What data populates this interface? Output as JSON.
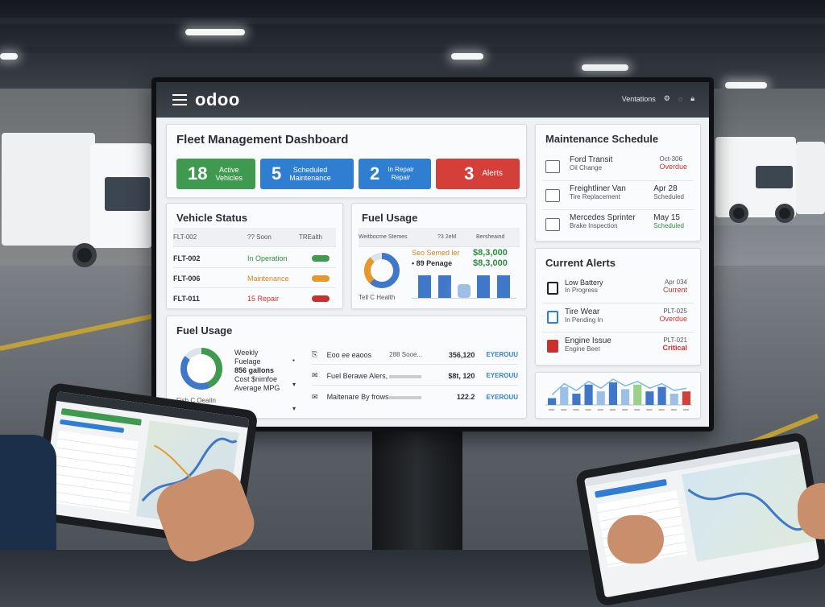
{
  "app": {
    "logo": "odoo",
    "top_right_label": "Ventations",
    "top_right_icons": [
      "settings-icon",
      "chat-icon",
      "lock-icon"
    ]
  },
  "dashboard": {
    "title": "Fleet Management Dashboard",
    "kpis": [
      {
        "value": "18",
        "label_line1": "Active",
        "label_line2": "Vehicles",
        "color": "#3f9a4f"
      },
      {
        "value": "5",
        "label_line1": "Scheduled",
        "label_line2": "Maintenance",
        "color": "#2f7ed1"
      },
      {
        "value": "2",
        "label_line1": "In Repair",
        "label_line2": "Repair",
        "color": "#2f7ed1"
      },
      {
        "value": "3",
        "label_line1": "Alerts",
        "label_line2": "",
        "color": "#d43f3a"
      }
    ]
  },
  "vehicle_status": {
    "title": "Vehicle Status",
    "header": [
      "FLT-002",
      "?? Soon",
      "TREalth"
    ],
    "rows": [
      {
        "id": "FLT-002",
        "status": "In Operation",
        "status_color": "#2e8b3e",
        "pill_color": "#3f9a4f"
      },
      {
        "id": "FLT-006",
        "status": "Maintenance",
        "status_color": "#d9821f",
        "pill_color": "#e39a2b"
      },
      {
        "id": "FLT-011",
        "status": "15 Repair",
        "status_color": "#c8322e",
        "pill_color": "#c8322e"
      }
    ]
  },
  "fuel_usage_small": {
    "title": "Fuel Usage",
    "header": [
      "Weitbocme Stemes",
      "?3 2eM",
      "Bersheaind"
    ],
    "line1_label": "Seo Semed ler",
    "line1_value": "$8,3,000",
    "line2_label": "• 89 Penage",
    "line2_value": "$8,3,000",
    "donut_caption": "Tell C Health",
    "bars": [
      0.82,
      0.82,
      0.5,
      0.82,
      0.82
    ]
  },
  "fuel_usage_large": {
    "title": "Fuel Usage",
    "donut_caption": "Fish C Oeaitn",
    "summary": [
      "Weekly",
      "Fuelage",
      "856 gallons",
      "Cost $nimfoe",
      "Average MPG"
    ],
    "rows": [
      {
        "label": "Eoo ee eaoos",
        "mid": "288 Sooe...",
        "value": "356,120",
        "badge": "EYEROUU"
      },
      {
        "label": "Fuel Berawe Alers,",
        "mid": "",
        "value": "$8t, 120",
        "badge": "EYEROUU"
      },
      {
        "label": "Maltenare By frows",
        "mid": "",
        "value": "122.2",
        "badge": "EYEROUU"
      }
    ]
  },
  "maintenance": {
    "title": "Maintenance Schedule",
    "items": [
      {
        "vehicle": "Ford Transit",
        "task": "Oil Change",
        "date": "Oct-306",
        "status": "Overdue",
        "status_color": "#c8322e"
      },
      {
        "vehicle": "Freightliner Van",
        "task": "Tire Replacement",
        "date": "Apr 28",
        "status": "Scheduled",
        "status_color": "#555555"
      },
      {
        "vehicle": "Mercedes Sprinter",
        "task": "Brake Inspection",
        "date": "May 15",
        "status": "Scheduled",
        "status_color": "#2e8b3e"
      }
    ]
  },
  "alerts": {
    "title": "Current Alerts",
    "items": [
      {
        "name": "Low Battery",
        "sub": "In Progress",
        "ref": "Apr 034",
        "status": "Current",
        "status_color": "#c8322e"
      },
      {
        "name": "Tire Wear",
        "sub": "In Pending In",
        "ref": "PLT-025",
        "status": "Overdue",
        "status_color": "#c8322e"
      },
      {
        "name": "Engine Issue",
        "sub": "Engine Beet",
        "ref": "PLT-021",
        "status": "Critical",
        "status_color": "#c8322e"
      }
    ]
  },
  "chart_data": {
    "type": "bar",
    "series": [
      {
        "values": [
          0.3,
          0.8,
          0.5,
          0.9,
          0.6,
          1.0,
          0.7,
          0.9,
          0.6,
          0.8,
          0.5,
          0.6
        ]
      }
    ]
  }
}
